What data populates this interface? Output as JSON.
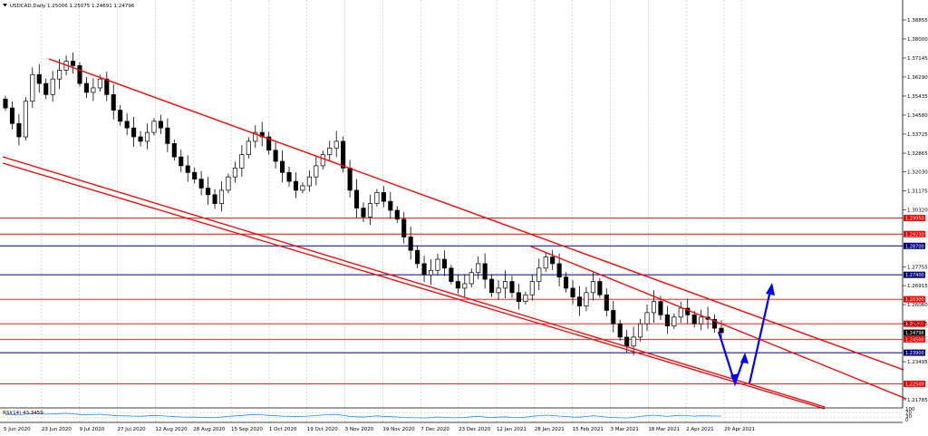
{
  "chart_data": {
    "type": "candlestick",
    "header": {
      "symbol_info": "USDCAD,Daily  1.25006 1.25075 1.24691 1.24796"
    },
    "y_ticks": [
      "1.38855",
      "1.38000",
      "1.37145",
      "1.36290",
      "1.35435",
      "1.34580",
      "1.33725",
      "1.32865",
      "1.32030",
      "1.31175",
      "1.30320",
      "1.27755",
      "1.26915",
      "1.26060",
      "1.25205",
      "1.23495",
      "1.21785"
    ],
    "y_range": [
      1.2115,
      1.395
    ],
    "x_ticks": [
      "5 Jun 2020",
      "23 Jun 2020",
      "9 Jul 2020",
      "27 Jul 2020",
      "12 Aug 2020",
      "28 Aug 2020",
      "15 Sep 2020",
      "1 Oct 2020",
      "19 Oct 2020",
      "3 Nov 2020",
      "19 Nov 2020",
      "7 Dec 2020",
      "23 Dec 2020",
      "12 Jan 2021",
      "28 Jan 2021",
      "15 Feb 2021",
      "3 Mar 2021",
      "18 Mar 2021",
      "2 Apr 2021",
      "20 Apr 2021"
    ],
    "price_levels": [
      {
        "label": "1.29950",
        "color": "#ff0000"
      },
      {
        "label": "1.29230",
        "color": "#ff0000"
      },
      {
        "label": "1.28700",
        "color": "#000080"
      },
      {
        "label": "1.27400",
        "color": "#000080"
      },
      {
        "label": "1.26300",
        "color": "#ff0000"
      },
      {
        "label": "1.25200",
        "color": "#ff0000"
      },
      {
        "label": "1.24500",
        "color": "#ff0000"
      },
      {
        "label": "1.23900",
        "color": "#000080"
      },
      {
        "label": "1.22500",
        "color": "#ff0000"
      }
    ],
    "current_price": {
      "label": "1.24796",
      "color": "#000000"
    },
    "closes": [
      1.349,
      1.342,
      1.336,
      1.352,
      1.364,
      1.36,
      1.355,
      1.362,
      1.366,
      1.37,
      1.368,
      1.36,
      1.356,
      1.358,
      1.362,
      1.355,
      1.348,
      1.343,
      1.34,
      1.336,
      1.334,
      1.338,
      1.343,
      1.34,
      1.333,
      1.327,
      1.323,
      1.32,
      1.317,
      1.313,
      1.31,
      1.306,
      1.312,
      1.318,
      1.322,
      1.328,
      1.334,
      1.338,
      1.336,
      1.33,
      1.325,
      1.32,
      1.316,
      1.312,
      1.314,
      1.318,
      1.323,
      1.328,
      1.331,
      1.334,
      1.322,
      1.312,
      1.304,
      1.3,
      1.306,
      1.311,
      1.307,
      1.303,
      1.299,
      1.291,
      1.285,
      1.279,
      1.274,
      1.276,
      1.281,
      1.277,
      1.271,
      1.268,
      1.27,
      1.275,
      1.279,
      1.272,
      1.266,
      1.268,
      1.271,
      1.266,
      1.262,
      1.265,
      1.271,
      1.277,
      1.282,
      1.279,
      1.273,
      1.268,
      1.264,
      1.26,
      1.266,
      1.271,
      1.265,
      1.258,
      1.252,
      1.246,
      1.242,
      1.246,
      1.252,
      1.257,
      1.262,
      1.256,
      1.251,
      1.255,
      1.259,
      1.256,
      1.252,
      1.255,
      1.254,
      1.25,
      1.248
    ],
    "rsi": {
      "label": "RSI(14) 43.3459",
      "values": [
        56,
        54,
        51,
        58,
        64,
        61,
        58,
        60,
        62,
        64,
        61,
        55,
        53,
        55,
        57,
        52,
        48,
        45,
        44,
        42,
        41,
        44,
        48,
        46,
        42,
        38,
        36,
        35,
        34,
        33,
        32,
        31,
        36,
        41,
        44,
        48,
        52,
        55,
        53,
        48,
        45,
        42,
        40,
        38,
        40,
        43,
        47,
        51,
        54,
        56,
        47,
        41,
        37,
        35,
        40,
        44,
        41,
        38,
        36,
        32,
        30,
        29,
        28,
        31,
        36,
        33,
        30,
        29,
        32,
        37,
        40,
        35,
        31,
        34,
        37,
        33,
        31,
        35,
        41,
        46,
        50,
        47,
        42,
        39,
        36,
        34,
        40,
        45,
        40,
        35,
        32,
        29,
        28,
        33,
        40,
        45,
        50,
        44,
        40,
        45,
        49,
        46,
        42,
        45,
        44,
        43,
        43
      ],
      "ticks": [
        "100",
        "70",
        "30",
        "0"
      ]
    }
  }
}
